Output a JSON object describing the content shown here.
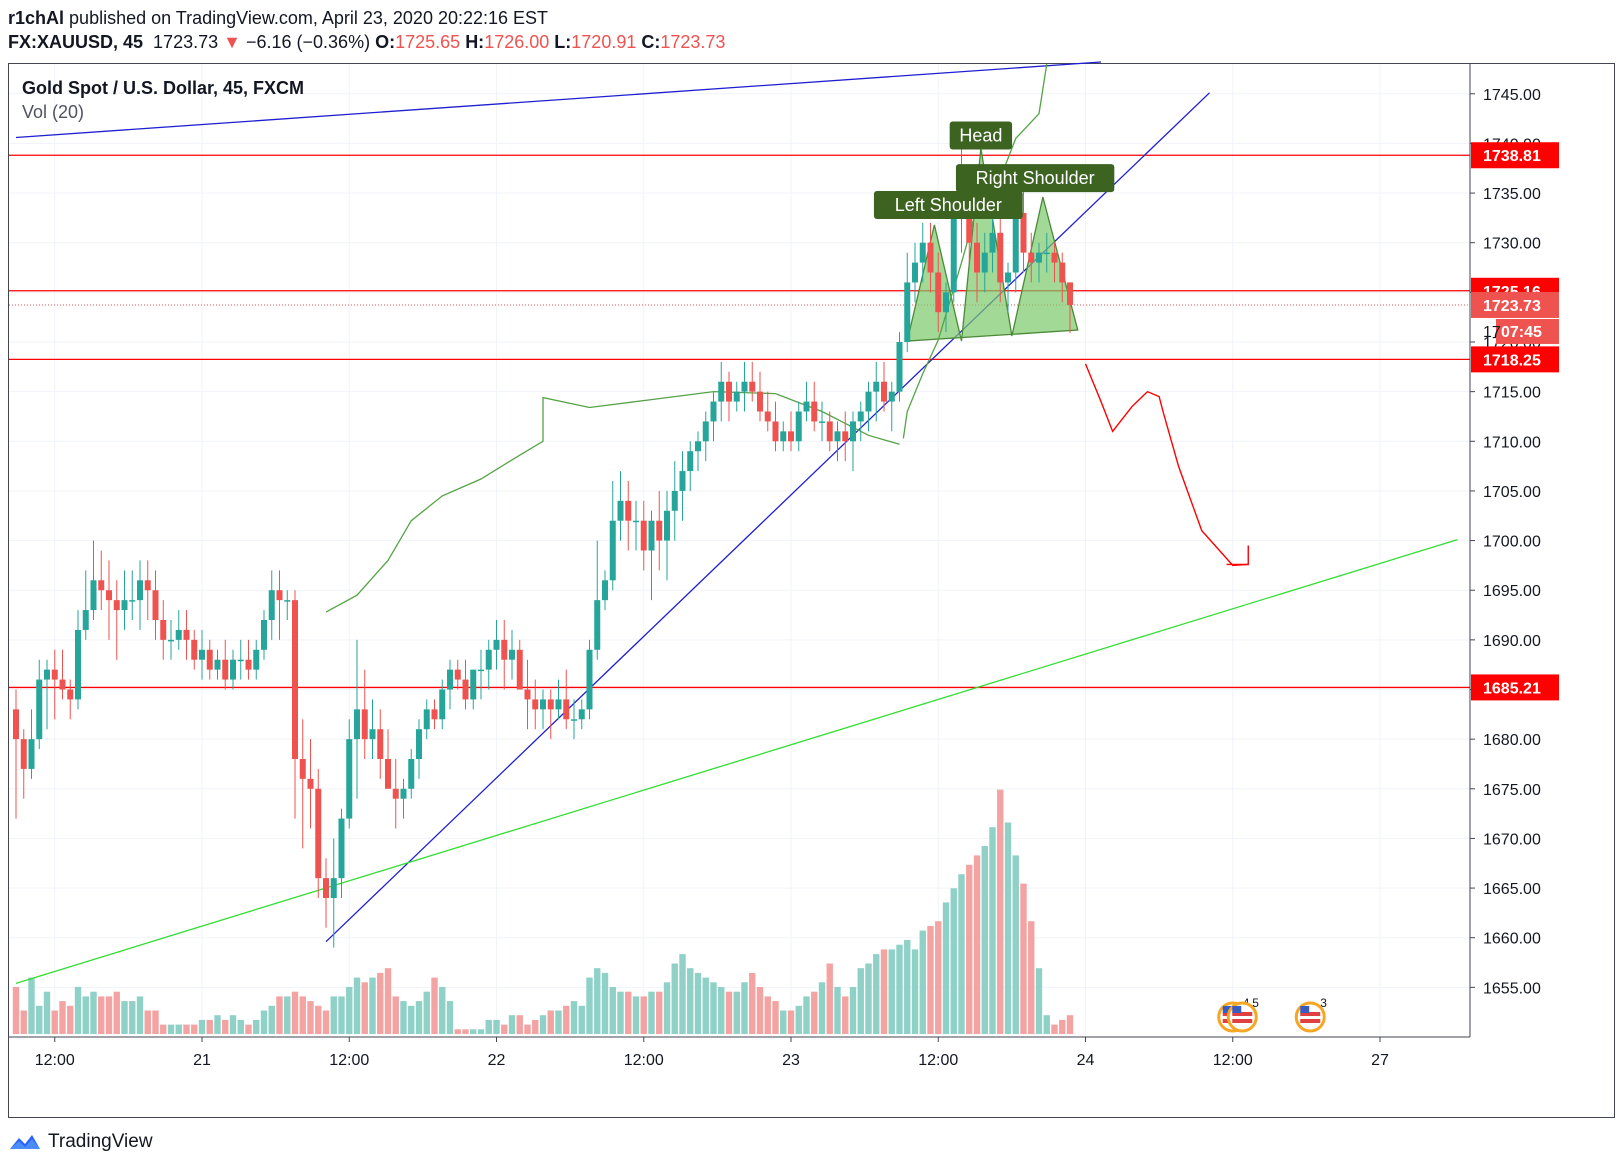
{
  "header": {
    "author": "r1chAl",
    "published": "published on TradingView.com, April 23, 2020 20:22:16 EST",
    "symbol": "FX:XAUUSD, 45",
    "last": "1723.73",
    "arrow": "▼",
    "change": "−6.16 (−0.36%)",
    "o_label": "O:",
    "o": "1725.65",
    "h_label": "H:",
    "h": "1726.00",
    "l_label": "L:",
    "l": "1720.91",
    "c_label": "C:",
    "c": "1723.73"
  },
  "legend": {
    "title": "Gold Spot / U.S. Dollar, 45, FXCM",
    "vol": "Vol (20)"
  },
  "footer": {
    "brand": "TradingView",
    "logo_icon": "tradingview-logo-icon"
  },
  "colors": {
    "up": "#26a69a",
    "down": "#ef5350",
    "vol_up": "#8fd0c7",
    "vol_down": "#f4a3a3",
    "hline": "#ff0000",
    "trend_blue": "#1f1fd1",
    "trend_green": "#33dd33",
    "pattern": "#4caf50",
    "label_bg": "#3d6321"
  },
  "chart_data": {
    "type": "candlestick",
    "title": "Gold Spot / U.S. Dollar, 45, FXCM",
    "ylim": [
      1650.0,
      1748.0
    ],
    "x_range": [
      0,
      186
    ],
    "y_ticks": [
      "1745.00",
      "1740.00",
      "1735.00",
      "1730.00",
      "1725.00",
      "1720.00",
      "1715.00",
      "1710.00",
      "1705.00",
      "1700.00",
      "1695.00",
      "1690.00",
      "1685.00",
      "1680.00",
      "1675.00",
      "1670.00",
      "1665.00",
      "1660.00",
      "1655.00"
    ],
    "x_ticks": [
      {
        "i": 5,
        "label": "12:00"
      },
      {
        "i": 24,
        "label": "21"
      },
      {
        "i": 43,
        "label": "12:00"
      },
      {
        "i": 62,
        "label": "22"
      },
      {
        "i": 81,
        "label": "12:00"
      },
      {
        "i": 100,
        "label": "23"
      },
      {
        "i": 119,
        "label": "12:00"
      },
      {
        "i": 138,
        "label": "24"
      },
      {
        "i": 157,
        "label": "12:00"
      },
      {
        "i": 176,
        "label": "27"
      }
    ],
    "price_labels": [
      {
        "value": 1738.81,
        "label": "1738.81",
        "color": "#ff0000"
      },
      {
        "value": 1725.16,
        "label": "1725.16",
        "color": "#ff0000"
      },
      {
        "value": 1723.73,
        "label": "1723.73",
        "color": "#ef5350"
      },
      {
        "value": 1718.25,
        "label": "1718.25",
        "color": "#ff0000"
      },
      {
        "value": 1685.21,
        "label": "1685.21",
        "color": "#ff0000"
      }
    ],
    "countdown": "07:45",
    "countdown_partial_tick": "17",
    "horizontal_lines": [
      1738.81,
      1725.16,
      1718.25,
      1685.21
    ],
    "last_price_line": 1723.73,
    "trendlines": [
      {
        "color": "blue",
        "from": [
          0,
          1740.6
        ],
        "to": [
          140,
          1748.2
        ]
      },
      {
        "color": "blue",
        "from": [
          40,
          1659.6
        ],
        "to": [
          154,
          1745.1
        ]
      },
      {
        "color": "green",
        "from": [
          0,
          1655.4
        ],
        "to": [
          186,
          1700.1
        ]
      }
    ],
    "pattern_labels": [
      "Left Shoulder",
      "Head",
      "Right Shoulder"
    ],
    "events": [
      {
        "i": 157,
        "label": "4"
      },
      {
        "i": 159,
        "label": "5"
      },
      {
        "i": 167,
        "label": "3"
      }
    ],
    "candles": [
      [
        1683.0,
        1685.0,
        1672.0,
        1680.0,
        10
      ],
      [
        1680.0,
        1681.0,
        1674.0,
        1677.0,
        5
      ],
      [
        1677.0,
        1683.0,
        1676.0,
        1680.0,
        12
      ],
      [
        1680.0,
        1688.0,
        1679.0,
        1686.0,
        6
      ],
      [
        1686.0,
        1688.0,
        1681.0,
        1687.0,
        9
      ],
      [
        1687.0,
        1689.0,
        1682.0,
        1686.0,
        5
      ],
      [
        1686.0,
        1689.0,
        1684.0,
        1685.0,
        7
      ],
      [
        1685.0,
        1686.0,
        1682.0,
        1684.0,
        6
      ],
      [
        1684.0,
        1693.0,
        1683.0,
        1691.0,
        10
      ],
      [
        1691.0,
        1697.0,
        1690.0,
        1693.0,
        8
      ],
      [
        1693.0,
        1700.0,
        1692.0,
        1696.0,
        9
      ],
      [
        1696.0,
        1699.0,
        1693.0,
        1695.0,
        8
      ],
      [
        1695.0,
        1698.0,
        1690.0,
        1694.0,
        8
      ],
      [
        1694.0,
        1696.0,
        1688.0,
        1693.0,
        9
      ],
      [
        1693.0,
        1697.0,
        1691.0,
        1694.0,
        7
      ],
      [
        1694.0,
        1697.0,
        1692.0,
        1694.0,
        7
      ],
      [
        1694.0,
        1698.0,
        1691.0,
        1696.0,
        8
      ],
      [
        1696.0,
        1698.0,
        1692.0,
        1695.0,
        5
      ],
      [
        1695.0,
        1697.0,
        1690.0,
        1692.0,
        5
      ],
      [
        1692.0,
        1694.0,
        1688.0,
        1690.0,
        2
      ],
      [
        1690.0,
        1692.0,
        1688.0,
        1690.0,
        2
      ],
      [
        1690.0,
        1693.0,
        1689.0,
        1691.0,
        2
      ],
      [
        1691.0,
        1693.0,
        1688.0,
        1690.0,
        2
      ],
      [
        1690.0,
        1691.0,
        1687.0,
        1688.0,
        2
      ],
      [
        1688.0,
        1691.0,
        1686.0,
        1689.0,
        3
      ],
      [
        1689.0,
        1690.0,
        1686.0,
        1687.0,
        3
      ],
      [
        1687.0,
        1689.0,
        1686.0,
        1688.0,
        4
      ],
      [
        1688.0,
        1690.0,
        1685.0,
        1686.0,
        3
      ],
      [
        1686.0,
        1689.0,
        1685.0,
        1688.0,
        4
      ],
      [
        1688.0,
        1690.0,
        1686.0,
        1688.0,
        3
      ],
      [
        1688.0,
        1690.0,
        1686.0,
        1687.0,
        2
      ],
      [
        1687.0,
        1690.0,
        1686.0,
        1689.0,
        3
      ],
      [
        1689.0,
        1693.0,
        1688.0,
        1692.0,
        5
      ],
      [
        1692.0,
        1697.0,
        1690.0,
        1695.0,
        6
      ],
      [
        1695.0,
        1697.0,
        1690.0,
        1694.0,
        8
      ],
      [
        1694.0,
        1695.0,
        1692.0,
        1694.0,
        8
      ],
      [
        1694.0,
        1695.0,
        1672.0,
        1678.0,
        9
      ],
      [
        1678.0,
        1682.0,
        1669.0,
        1676.0,
        8
      ],
      [
        1676.0,
        1680.0,
        1671.0,
        1675.0,
        7
      ],
      [
        1675.0,
        1677.0,
        1664.0,
        1666.0,
        6
      ],
      [
        1666.0,
        1668.0,
        1661.0,
        1664.0,
        5
      ],
      [
        1664.0,
        1670.0,
        1659.0,
        1666.0,
        8
      ],
      [
        1666.0,
        1673.0,
        1664.0,
        1672.0,
        8
      ],
      [
        1672.0,
        1682.0,
        1671.0,
        1680.0,
        10
      ],
      [
        1680.0,
        1690.0,
        1674.0,
        1683.0,
        12
      ],
      [
        1683.0,
        1687.0,
        1678.0,
        1680.0,
        11
      ],
      [
        1680.0,
        1684.0,
        1678.0,
        1681.0,
        12
      ],
      [
        1681.0,
        1683.0,
        1676.0,
        1678.0,
        13
      ],
      [
        1678.0,
        1681.0,
        1675.0,
        1675.0,
        14
      ],
      [
        1675.0,
        1678.0,
        1671.0,
        1674.0,
        8
      ],
      [
        1674.0,
        1676.0,
        1672.0,
        1675.0,
        7
      ],
      [
        1675.0,
        1679.0,
        1674.0,
        1678.0,
        6
      ],
      [
        1678.0,
        1682.0,
        1676.0,
        1681.0,
        7
      ],
      [
        1681.0,
        1684.0,
        1680.0,
        1683.0,
        9
      ],
      [
        1683.0,
        1684.0,
        1681.0,
        1682.0,
        12
      ],
      [
        1682.0,
        1686.0,
        1681.0,
        1685.0,
        10
      ],
      [
        1685.0,
        1688.0,
        1683.0,
        1687.0,
        7
      ],
      [
        1687.0,
        1688.0,
        1685.0,
        1686.0,
        1
      ],
      [
        1686.0,
        1688.0,
        1683.0,
        1684.0,
        1
      ],
      [
        1684.0,
        1687.0,
        1683.0,
        1687.0,
        1
      ],
      [
        1687.0,
        1689.0,
        1684.0,
        1687.0,
        1
      ],
      [
        1687.0,
        1690.0,
        1685.0,
        1689.0,
        3
      ],
      [
        1689.0,
        1692.0,
        1687.0,
        1690.0,
        3
      ],
      [
        1690.0,
        1692.0,
        1685.0,
        1688.0,
        2
      ],
      [
        1688.0,
        1691.0,
        1686.0,
        1689.0,
        4
      ],
      [
        1689.0,
        1690.0,
        1685.0,
        1685.0,
        4
      ],
      [
        1685.0,
        1688.0,
        1681.0,
        1684.0,
        2
      ],
      [
        1684.0,
        1686.0,
        1681.0,
        1683.0,
        3
      ],
      [
        1683.0,
        1685.0,
        1681.0,
        1684.0,
        4
      ],
      [
        1684.0,
        1685.0,
        1680.0,
        1683.0,
        5
      ],
      [
        1683.0,
        1686.0,
        1682.0,
        1684.0,
        5
      ],
      [
        1684.0,
        1687.0,
        1681.0,
        1682.0,
        6
      ],
      [
        1682.0,
        1684.0,
        1680.0,
        1682.0,
        7
      ],
      [
        1682.0,
        1684.0,
        1681.0,
        1683.0,
        6
      ],
      [
        1683.0,
        1690.0,
        1682.0,
        1689.0,
        12
      ],
      [
        1689.0,
        1700.0,
        1688.0,
        1694.0,
        14
      ],
      [
        1694.0,
        1697.0,
        1693.0,
        1696.0,
        13
      ],
      [
        1696.0,
        1706.0,
        1695.0,
        1702.0,
        10
      ],
      [
        1702.0,
        1707.0,
        1700.0,
        1704.0,
        9
      ],
      [
        1704.0,
        1706.0,
        1699.0,
        1702.0,
        9
      ],
      [
        1702.0,
        1704.0,
        1699.0,
        1702.0,
        8
      ],
      [
        1702.0,
        1704.0,
        1697.0,
        1699.0,
        8
      ],
      [
        1699.0,
        1703.0,
        1694.0,
        1702.0,
        9
      ],
      [
        1702.0,
        1705.0,
        1697.0,
        1700.0,
        9
      ],
      [
        1700.0,
        1705.0,
        1696.0,
        1703.0,
        11
      ],
      [
        1703.0,
        1708.0,
        1700.0,
        1705.0,
        15
      ],
      [
        1705.0,
        1709.0,
        1702.0,
        1707.0,
        17
      ],
      [
        1707.0,
        1710.0,
        1705.0,
        1709.0,
        14
      ],
      [
        1709.0,
        1711.0,
        1707.0,
        1710.0,
        13
      ],
      [
        1710.0,
        1713.0,
        1708.0,
        1712.0,
        12
      ],
      [
        1712.0,
        1715.0,
        1710.0,
        1714.0,
        11
      ],
      [
        1714.0,
        1718.0,
        1712.0,
        1716.0,
        10
      ],
      [
        1716.0,
        1717.0,
        1712.0,
        1714.0,
        9
      ],
      [
        1714.0,
        1716.0,
        1713.0,
        1715.0,
        9
      ],
      [
        1715.0,
        1718.0,
        1713.0,
        1716.0,
        11
      ],
      [
        1716.0,
        1718.0,
        1714.0,
        1715.0,
        13
      ],
      [
        1715.0,
        1717.0,
        1712.0,
        1713.0,
        10
      ],
      [
        1713.0,
        1715.0,
        1711.0,
        1712.0,
        8
      ],
      [
        1712.0,
        1714.0,
        1709.0,
        1710.0,
        7
      ],
      [
        1710.0,
        1712.0,
        1709.0,
        1711.0,
        5
      ],
      [
        1711.0,
        1713.0,
        1709.0,
        1710.0,
        5
      ],
      [
        1710.0,
        1714.0,
        1709.0,
        1713.0,
        6
      ],
      [
        1713.0,
        1716.0,
        1712.0,
        1714.0,
        8
      ],
      [
        1714.0,
        1716.0,
        1711.0,
        1712.0,
        9
      ],
      [
        1712.0,
        1714.0,
        1710.0,
        1712.0,
        11
      ],
      [
        1712.0,
        1713.0,
        1709.0,
        1710.0,
        15
      ],
      [
        1710.0,
        1712.0,
        1708.0,
        1711.0,
        10
      ],
      [
        1711.0,
        1713.0,
        1708.0,
        1710.0,
        8
      ],
      [
        1710.0,
        1713.0,
        1707.0,
        1712.0,
        10
      ],
      [
        1712.0,
        1714.0,
        1710.0,
        1713.0,
        14
      ],
      [
        1713.0,
        1716.0,
        1711.0,
        1715.0,
        15
      ],
      [
        1715.0,
        1718.0,
        1712.0,
        1716.0,
        17
      ],
      [
        1716.0,
        1718.0,
        1713.0,
        1714.0,
        18
      ],
      [
        1714.0,
        1716.0,
        1711.0,
        1715.0,
        18
      ],
      [
        1715.0,
        1721.0,
        1714.0,
        1720.0,
        19
      ],
      [
        1720.0,
        1729.0,
        1719.0,
        1726.0,
        20
      ],
      [
        1726.0,
        1730.0,
        1724.0,
        1728.0,
        18
      ],
      [
        1728.0,
        1732.0,
        1726.0,
        1730.0,
        22
      ],
      [
        1730.0,
        1732.0,
        1725.0,
        1727.0,
        23
      ],
      [
        1727.0,
        1729.0,
        1721.0,
        1723.0,
        24
      ],
      [
        1723.0,
        1726.0,
        1721.0,
        1725.0,
        28
      ],
      [
        1725.0,
        1735.0,
        1724.0,
        1733.0,
        31
      ],
      [
        1733.0,
        1740.0,
        1729.0,
        1734.0,
        34
      ],
      [
        1734.0,
        1736.0,
        1728.0,
        1730.0,
        36
      ],
      [
        1730.0,
        1732.0,
        1724.0,
        1727.0,
        38
      ],
      [
        1727.0,
        1731.0,
        1725.0,
        1729.0,
        40
      ],
      [
        1729.0,
        1734.0,
        1727.0,
        1731.0,
        44
      ],
      [
        1731.0,
        1735.0,
        1724.0,
        1726.0,
        52
      ],
      [
        1726.0,
        1728.0,
        1723.0,
        1727.0,
        45
      ],
      [
        1727.0,
        1735.0,
        1725.0,
        1733.0,
        38
      ],
      [
        1733.0,
        1736.0,
        1727.0,
        1729.0,
        32
      ],
      [
        1729.0,
        1731.0,
        1726.0,
        1728.0,
        24
      ],
      [
        1728.0,
        1730.0,
        1726.0,
        1729.0,
        14
      ],
      [
        1729.0,
        1731.0,
        1727.0,
        1729.0,
        4
      ],
      [
        1729.0,
        1730.0,
        1726.0,
        1728.0,
        2
      ],
      [
        1728.0,
        1729.0,
        1724.0,
        1726.0,
        3
      ],
      [
        1726.0,
        1726.0,
        1720.9,
        1723.73,
        4
      ]
    ]
  }
}
